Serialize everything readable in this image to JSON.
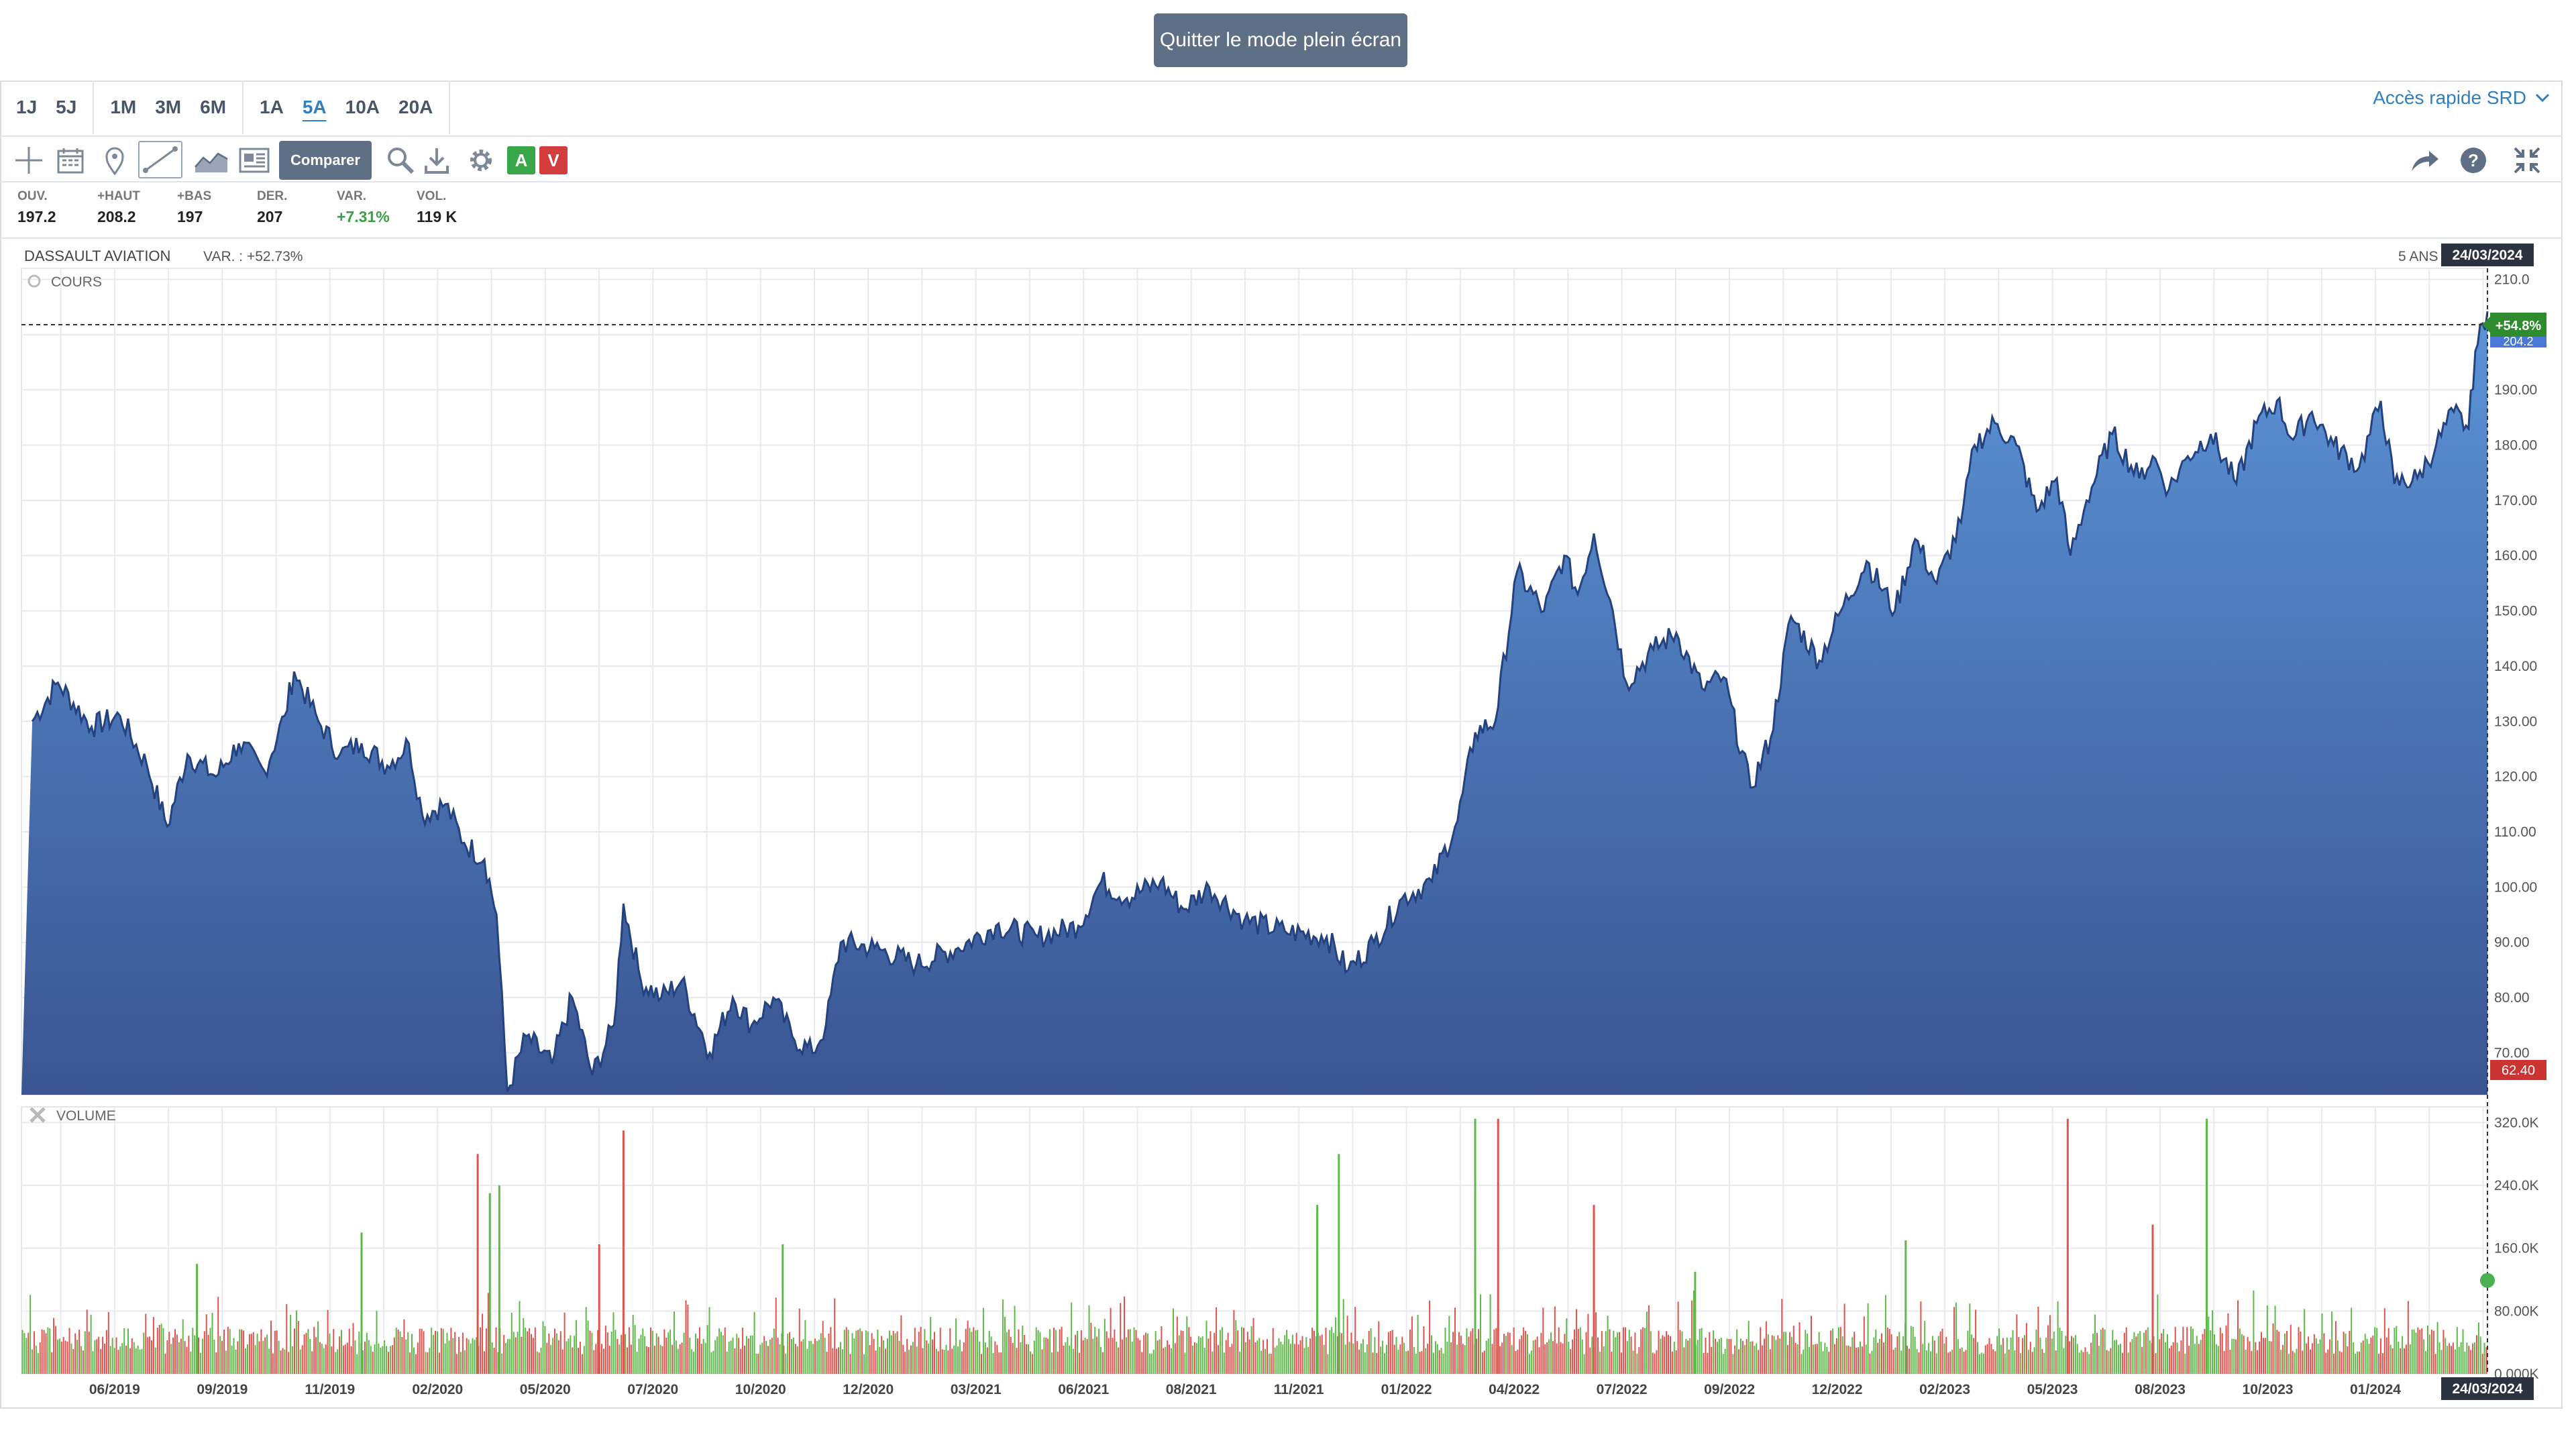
{
  "header": {
    "fullscreen_label": "Quitter le mode plein écran"
  },
  "periods": [
    [
      "1J",
      "5J"
    ],
    [
      "1M",
      "3M",
      "6M"
    ],
    [
      "1A",
      "5A",
      "10A",
      "20A"
    ]
  ],
  "active_period": "5A",
  "srd_label": "Accès rapide SRD",
  "toolbar": {
    "compare_label": "Comparer",
    "buy_label": "A",
    "sell_label": "V",
    "icons": [
      "crosshair-icon",
      "calendar-icon",
      "pin-icon",
      "trendline-icon",
      "area-chart-icon",
      "news-icon",
      "search-icon",
      "download-icon",
      "gear-icon",
      "share-icon",
      "help-icon",
      "fullscreen-exit-icon"
    ]
  },
  "stats": [
    {
      "label": "OUV.",
      "value": "197.2",
      "positive": false
    },
    {
      "label": "+HAUT",
      "value": "208.2",
      "positive": false
    },
    {
      "label": "+BAS",
      "value": "197",
      "positive": false
    },
    {
      "label": "DER.",
      "value": "207",
      "positive": false
    },
    {
      "label": "VAR.",
      "value": "+7.31%",
      "positive": true
    },
    {
      "label": "VOL.",
      "value": "119 K",
      "positive": false
    }
  ],
  "colors": {
    "area_top": "#5b93d6",
    "area_bottom": "#3a5592",
    "line": "#24427f",
    "vol_up": "#5fb94a",
    "vol_down": "#e0524d",
    "badge_green": "#2e8b2e",
    "badge_red": "#cc3333",
    "date_badge": "#2b3240"
  },
  "chart_data": {
    "instrument": "DASSAULT AVIATION",
    "variation_label": "VAR. : +52.73%",
    "range_label": "5 ANS",
    "date_label": "24/03/2024",
    "price_panel": {
      "label": "COURS",
      "type": "area",
      "ylim": [
        62.4,
        212
      ],
      "yticks": [
        "70.00",
        "80.00",
        "90.00",
        "100.00",
        "110.00",
        "120.00",
        "130.00",
        "140.00",
        "150.00",
        "160.00",
        "170.00",
        "180.00",
        "190.00",
        "200.0",
        "210.0"
      ],
      "last_change": "+54.8%",
      "last_value": "204.2",
      "min_label": "62.40",
      "series": [
        [
          "2019-04-01",
          130
        ],
        [
          "2019-04-20",
          137
        ],
        [
          "2019-05-15",
          129
        ],
        [
          "2019-06-05",
          131
        ],
        [
          "2019-06-25",
          122
        ],
        [
          "2019-07-10",
          111
        ],
        [
          "2019-07-25",
          124
        ],
        [
          "2019-08-15",
          120
        ],
        [
          "2019-09-01",
          126
        ],
        [
          "2019-09-20",
          121
        ],
        [
          "2019-10-05",
          131
        ],
        [
          "2019-10-12",
          139
        ],
        [
          "2019-10-30",
          130
        ],
        [
          "2019-11-15",
          124
        ],
        [
          "2019-12-01",
          126
        ],
        [
          "2019-12-20",
          122
        ],
        [
          "2020-01-05",
          126
        ],
        [
          "2020-01-15",
          113
        ],
        [
          "2020-02-01",
          115
        ],
        [
          "2020-02-15",
          108
        ],
        [
          "2020-03-01",
          105
        ],
        [
          "2020-03-10",
          95
        ],
        [
          "2020-03-18",
          63
        ],
        [
          "2020-04-01",
          73
        ],
        [
          "2020-04-20",
          68
        ],
        [
          "2020-05-05",
          80
        ],
        [
          "2020-05-20",
          66
        ],
        [
          "2020-06-05",
          75
        ],
        [
          "2020-06-12",
          97
        ],
        [
          "2020-06-25",
          83
        ],
        [
          "2020-07-10",
          80
        ],
        [
          "2020-07-25",
          83
        ],
        [
          "2020-08-15",
          70
        ],
        [
          "2020-09-01",
          80
        ],
        [
          "2020-09-15",
          75
        ],
        [
          "2020-10-01",
          80
        ],
        [
          "2020-10-15",
          73
        ],
        [
          "2020-10-30",
          70
        ],
        [
          "2020-11-09",
          75
        ],
        [
          "2020-11-20",
          90
        ],
        [
          "2020-12-15",
          89
        ],
        [
          "2021-01-15",
          86
        ],
        [
          "2021-02-15",
          89
        ],
        [
          "2021-03-15",
          93
        ],
        [
          "2021-04-15",
          91
        ],
        [
          "2021-05-15",
          93
        ],
        [
          "2021-06-01",
          101
        ],
        [
          "2021-06-20",
          98
        ],
        [
          "2021-07-15",
          101
        ],
        [
          "2021-08-01",
          96
        ],
        [
          "2021-08-20",
          100
        ],
        [
          "2021-09-15",
          94
        ],
        [
          "2021-10-15",
          92
        ],
        [
          "2021-11-15",
          91
        ],
        [
          "2021-12-01",
          85
        ],
        [
          "2021-12-20",
          90
        ],
        [
          "2022-01-10",
          98
        ],
        [
          "2022-02-01",
          101
        ],
        [
          "2022-02-20",
          112
        ],
        [
          "2022-03-05",
          128
        ],
        [
          "2022-03-20",
          130
        ],
        [
          "2022-04-05",
          157
        ],
        [
          "2022-04-25",
          150
        ],
        [
          "2022-05-10",
          160
        ],
        [
          "2022-05-20",
          153
        ],
        [
          "2022-06-01",
          164
        ],
        [
          "2022-06-15",
          150
        ],
        [
          "2022-06-25",
          137
        ],
        [
          "2022-07-15",
          143
        ],
        [
          "2022-08-01",
          146
        ],
        [
          "2022-08-20",
          136
        ],
        [
          "2022-09-05",
          138
        ],
        [
          "2022-09-25",
          118
        ],
        [
          "2022-10-10",
          127
        ],
        [
          "2022-10-25",
          149
        ],
        [
          "2022-11-15",
          141
        ],
        [
          "2022-12-01",
          150
        ],
        [
          "2022-12-20",
          159
        ],
        [
          "2023-01-10",
          150
        ],
        [
          "2023-01-25",
          163
        ],
        [
          "2023-02-10",
          155
        ],
        [
          "2023-02-28",
          166
        ],
        [
          "2023-03-10",
          180
        ],
        [
          "2023-03-25",
          184
        ],
        [
          "2023-04-10",
          180
        ],
        [
          "2023-04-25",
          168
        ],
        [
          "2023-05-10",
          174
        ],
        [
          "2023-05-20",
          160
        ],
        [
          "2023-06-01",
          170
        ],
        [
          "2023-06-20",
          182
        ],
        [
          "2023-07-10",
          174
        ],
        [
          "2023-07-20",
          178
        ],
        [
          "2023-08-01",
          172
        ],
        [
          "2023-08-15",
          178
        ],
        [
          "2023-09-01",
          182
        ],
        [
          "2023-09-20",
          173
        ],
        [
          "2023-10-05",
          184
        ],
        [
          "2023-10-20",
          188
        ],
        [
          "2023-11-01",
          181
        ],
        [
          "2023-11-15",
          186
        ],
        [
          "2023-12-01",
          180
        ],
        [
          "2023-12-20",
          176
        ],
        [
          "2024-01-05",
          188
        ],
        [
          "2024-01-15",
          173
        ],
        [
          "2024-02-01",
          174
        ],
        [
          "2024-02-15",
          180
        ],
        [
          "2024-02-28",
          186
        ],
        [
          "2024-03-10",
          183
        ],
        [
          "2024-03-15",
          197
        ],
        [
          "2024-03-24",
          204.2
        ]
      ]
    },
    "volume_panel": {
      "label": "VOLUME",
      "type": "bar",
      "ylim": [
        0,
        340000
      ],
      "yticks": [
        "0.000K",
        "80.00K",
        "160.0K",
        "240.0K",
        "320.0K"
      ],
      "peaks": [
        [
          "2020-02-25",
          280000,
          "down"
        ],
        [
          "2020-03-05",
          230000,
          "up"
        ],
        [
          "2020-03-12",
          240000,
          "up"
        ],
        [
          "2020-06-12",
          310000,
          "down"
        ],
        [
          "2020-05-25",
          165000,
          "down"
        ],
        [
          "2020-10-08",
          165000,
          "up"
        ],
        [
          "2021-11-08",
          215000,
          "up"
        ],
        [
          "2021-11-24",
          280000,
          "up"
        ],
        [
          "2022-03-05",
          325000,
          "up"
        ],
        [
          "2022-03-22",
          325000,
          "down"
        ],
        [
          "2022-06-01",
          215000,
          "down"
        ],
        [
          "2022-08-15",
          130000,
          "up"
        ],
        [
          "2023-01-18",
          170000,
          "up"
        ],
        [
          "2023-05-18",
          325000,
          "down"
        ],
        [
          "2023-07-20",
          190000,
          "down"
        ],
        [
          "2023-08-29",
          325000,
          "up"
        ],
        [
          "2019-08-01",
          140000,
          "up"
        ],
        [
          "2019-12-01",
          180000,
          "up"
        ]
      ],
      "last_value": 119000
    },
    "xticks": [
      "06/2019",
      "09/2019",
      "11/2019",
      "02/2020",
      "05/2020",
      "07/2020",
      "10/2020",
      "12/2020",
      "03/2021",
      "06/2021",
      "08/2021",
      "11/2021",
      "01/2022",
      "04/2022",
      "07/2022",
      "09/2022",
      "12/2022",
      "02/2023",
      "05/2023",
      "08/2023",
      "10/2023",
      "01/2024"
    ],
    "grid": true,
    "legend": "none"
  }
}
